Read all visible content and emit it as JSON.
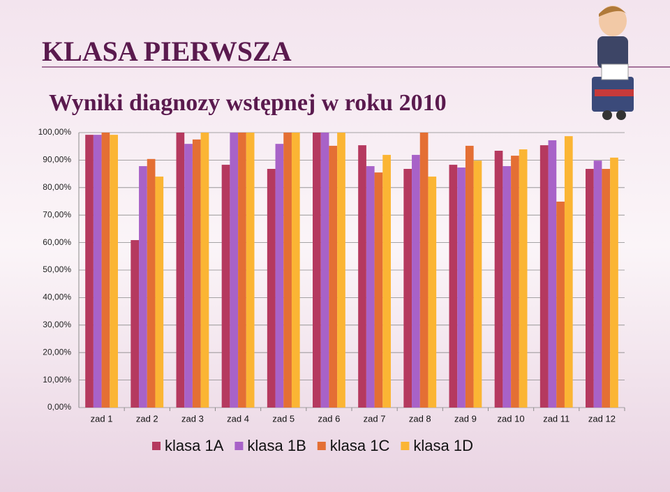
{
  "chart_data": {
    "type": "bar",
    "title": "KLASA PIERWSZA",
    "subtitle": "Wyniki diagnozy wstępnej w roku 2010",
    "categories": [
      "zad 1",
      "zad 2",
      "zad 3",
      "zad 4",
      "zad 5",
      "zad 6",
      "zad 7",
      "zad 8",
      "zad 9",
      "zad 10",
      "zad 11",
      "zad 12"
    ],
    "series": [
      {
        "name": "klasa 1A",
        "color": "#b5395f",
        "values": [
          99.2,
          60.9,
          100,
          88.3,
          86.8,
          100,
          95.4,
          86.8,
          88.3,
          93.4,
          95.4,
          86.8
        ]
      },
      {
        "name": "klasa 1B",
        "color": "#a862c8",
        "values": [
          99.2,
          87.8,
          95.9,
          100,
          95.9,
          100,
          87.8,
          91.9,
          87.3,
          87.8,
          97.2,
          89.8
        ]
      },
      {
        "name": "klasa 1C",
        "color": "#e46f34",
        "values": [
          100,
          90.4,
          97.5,
          100,
          100,
          95.2,
          85.5,
          100,
          95.2,
          91.6,
          74.9,
          86.8
        ]
      },
      {
        "name": "klasa 1D",
        "color": "#fbb534",
        "values": [
          99.2,
          84.0,
          100,
          100,
          100,
          100,
          91.9,
          84.0,
          89.8,
          93.9,
          98.7,
          90.9
        ]
      }
    ],
    "ylim": [
      0,
      100
    ],
    "yticks": [
      {
        "value": 0,
        "label": "0,00%"
      },
      {
        "value": 10,
        "label": "10,00%"
      },
      {
        "value": 20,
        "label": "20,00%"
      },
      {
        "value": 30,
        "label": "30,00%"
      },
      {
        "value": 40,
        "label": "40,00%"
      },
      {
        "value": 50,
        "label": "50,00%"
      },
      {
        "value": 60,
        "label": "60,00%"
      },
      {
        "value": 70,
        "label": "70,00%"
      },
      {
        "value": 80,
        "label": "80,00%"
      },
      {
        "value": 90,
        "label": "90,00%"
      },
      {
        "value": 100,
        "label": "100,00%"
      }
    ],
    "grid": true,
    "legend": "bottom"
  }
}
